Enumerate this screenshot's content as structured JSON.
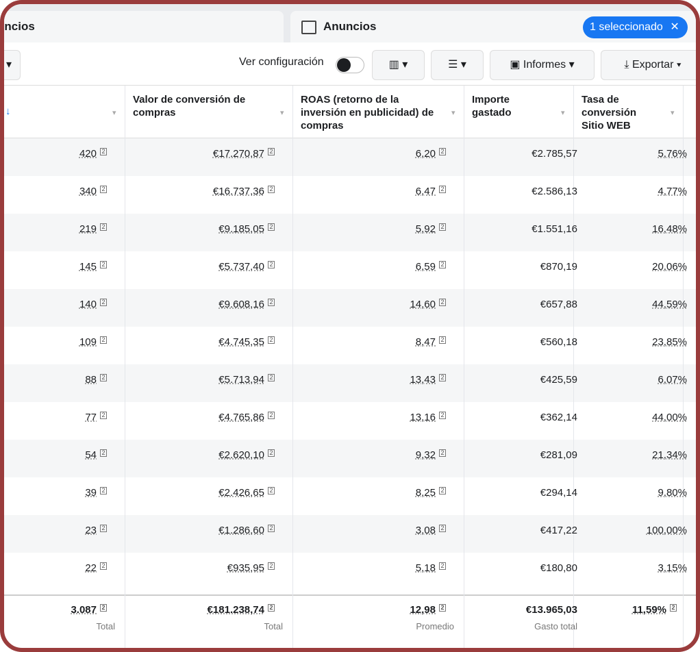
{
  "tabs": {
    "left": "uncios",
    "right": "Anuncios",
    "selected": "1 seleccionado"
  },
  "toolbar": {
    "settings": "Ver configuración",
    "reports": "Informes",
    "export": "Exportar"
  },
  "table": {
    "headers": [
      "",
      "Valor de conversión de compras",
      "ROAS (retorno de la inversión en publicidad) de compras",
      "Importe gastado",
      "Tasa de conversión Sitio WEB"
    ],
    "footnote_marker": "2",
    "rows": [
      [
        "420",
        "€17.270,87",
        "6,20",
        "€2.785,57",
        "5,76%"
      ],
      [
        "340",
        "€16.737,36",
        "6,47",
        "€2.586,13",
        "4,77%"
      ],
      [
        "219",
        "€9.185,05",
        "5,92",
        "€1.551,16",
        "16,48%"
      ],
      [
        "145",
        "€5.737,40",
        "6,59",
        "€870,19",
        "20,06%"
      ],
      [
        "140",
        "€9.608,16",
        "14,60",
        "€657,88",
        "44,59%"
      ],
      [
        "109",
        "€4.745,35",
        "8,47",
        "€560,18",
        "23,85%"
      ],
      [
        "88",
        "€5.713,94",
        "13,43",
        "€425,59",
        "6,07%"
      ],
      [
        "77",
        "€4.765,86",
        "13,16",
        "€362,14",
        "44,00%"
      ],
      [
        "54",
        "€2.620,10",
        "9,32",
        "€281,09",
        "21,34%"
      ],
      [
        "39",
        "€2.426,65",
        "8,25",
        "€294,14",
        "9,80%"
      ],
      [
        "23",
        "€1.286,60",
        "3,08",
        "€417,22",
        "100,00%"
      ],
      [
        "22",
        "€935,95",
        "5,18",
        "€180,80",
        "3,15%"
      ]
    ],
    "totals": [
      "3.087",
      "€181.238,74",
      "12,98",
      "€13.965,03",
      "11,59%"
    ],
    "total_labels": [
      "Total",
      "Total",
      "Promedio",
      "Gasto total",
      ""
    ]
  }
}
